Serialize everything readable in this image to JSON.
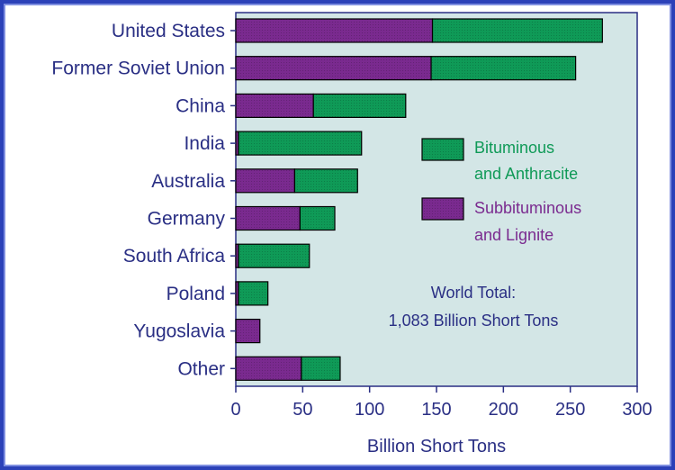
{
  "colors": {
    "frame": "#2b41b8",
    "plot_bg": "#d3e6e6",
    "axis": "#2a2f84",
    "text": "#2a2f84",
    "subbituminous": "#7a2a8f",
    "bituminous": "#0f9a57",
    "legend_bituminous_text": "#0f9a57",
    "legend_subbituminous_text": "#7a2a8f"
  },
  "chart_data": {
    "type": "bar",
    "orientation": "horizontal",
    "stacked": true,
    "categories": [
      "United States",
      "Former Soviet Union",
      "China",
      "India",
      "Australia",
      "Germany",
      "South Africa",
      "Poland",
      "Yugoslavia",
      "Other"
    ],
    "series": [
      {
        "name": "Subbituminous and Lignite",
        "key": "subbituminous",
        "values": [
          147,
          146,
          58,
          2,
          44,
          48,
          2,
          2,
          18,
          49
        ]
      },
      {
        "name": "Bituminous and Anthracite",
        "key": "bituminous",
        "values": [
          127,
          108,
          69,
          92,
          47,
          26,
          53,
          22,
          0,
          29
        ]
      }
    ],
    "xlabel": "Billion Short Tons",
    "xlim": [
      0,
      300
    ],
    "xticks": [
      "0",
      "50",
      "100",
      "150",
      "200",
      "250",
      "300"
    ],
    "legend": {
      "placement": "right",
      "items": [
        {
          "key": "bituminous",
          "lines": [
            "Bituminous",
            "and Anthracite"
          ]
        },
        {
          "key": "subbituminous",
          "lines": [
            "Subbituminous",
            "and Lignite"
          ]
        }
      ]
    },
    "annotation": [
      "World Total:",
      "1,083 Billion Short Tons"
    ]
  }
}
